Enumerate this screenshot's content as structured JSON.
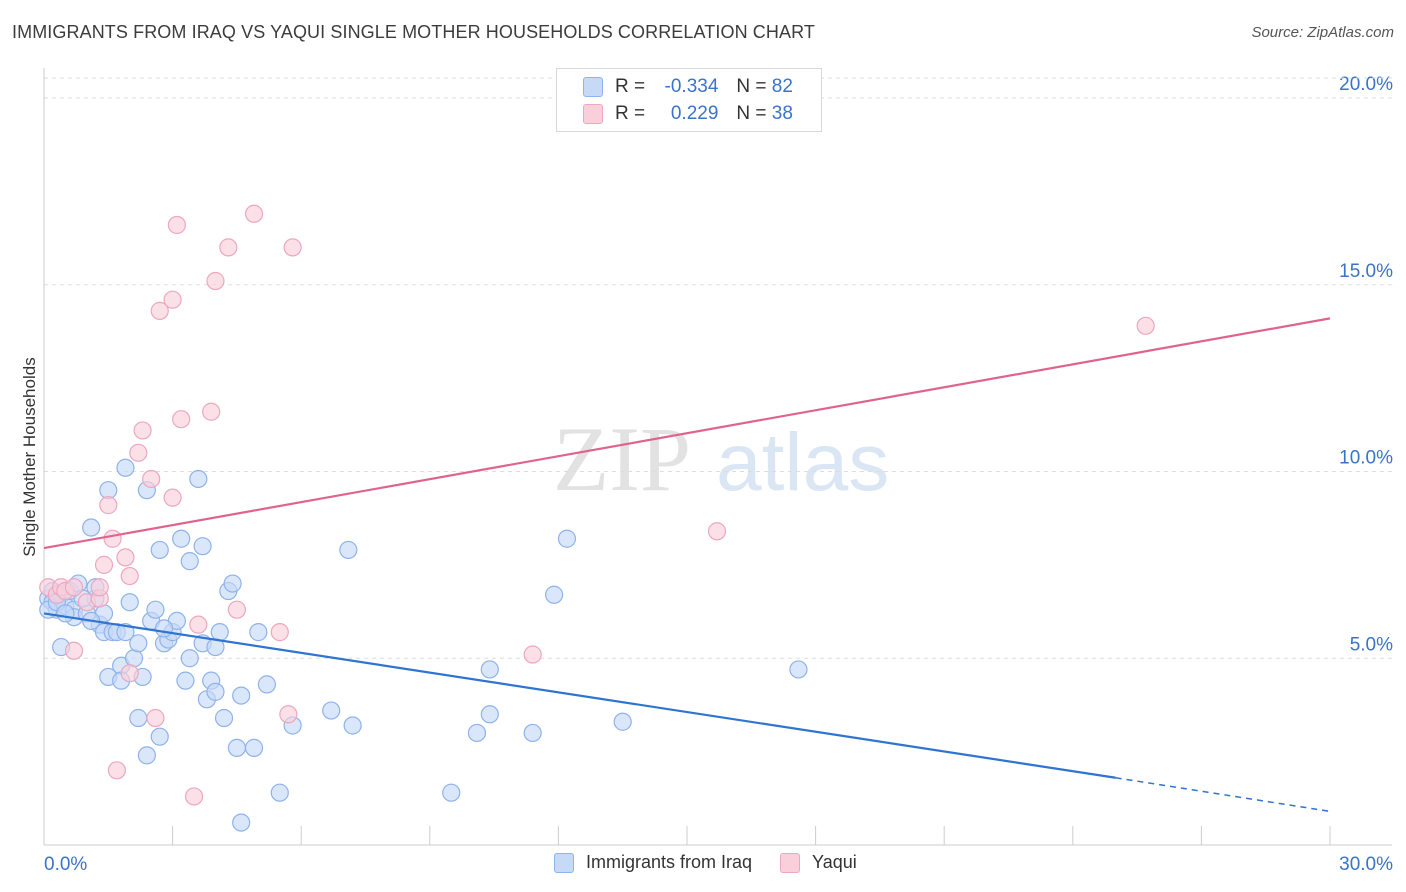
{
  "title": "IMMIGRANTS FROM IRAQ VS YAQUI SINGLE MOTHER HOUSEHOLDS CORRELATION CHART",
  "source": "Source: ZipAtlas.com",
  "watermark": {
    "zip": "ZIP",
    "atlas": "atlas"
  },
  "colors": {
    "blue_fill": "#c6d9f7",
    "blue_stroke": "#8fb3ea",
    "blue_line": "#2e74d0",
    "pink_fill": "#f9cfdc",
    "pink_stroke": "#eda7bf",
    "pink_line": "#e0638f",
    "tick_label": "#3a73c9",
    "grid": "#dddddd"
  },
  "legend": {
    "rows": [
      {
        "r_label": "R =",
        "r_value": "-0.334",
        "n_label": "N =",
        "n_value": "82"
      },
      {
        "r_label": "R =",
        "r_value": "0.229",
        "n_label": "N =",
        "n_value": "38"
      }
    ]
  },
  "chart_data": {
    "type": "scatter",
    "title": "IMMIGRANTS FROM IRAQ VS YAQUI SINGLE MOTHER HOUSEHOLDS CORRELATION CHART",
    "xlabel": "",
    "ylabel": "Single Mother Households",
    "xlim": [
      0,
      30
    ],
    "ylim": [
      0,
      21
    ],
    "x_tick_labels": [
      {
        "value": 0,
        "label": "0.0%"
      },
      {
        "value": 30,
        "label": "30.0%"
      }
    ],
    "y_tick_labels": [
      {
        "value": 5,
        "label": "5.0%"
      },
      {
        "value": 10,
        "label": "10.0%"
      },
      {
        "value": 15,
        "label": "15.0%"
      },
      {
        "value": 20,
        "label": "20.0%"
      }
    ],
    "series": [
      {
        "name": "Immigrants from Iraq",
        "color": "blue",
        "trend": {
          "x0": 0,
          "y0": 6.2,
          "x1": 25.0,
          "y1": 1.8,
          "dash_to_x": 30,
          "dash_to_y": 0.9
        },
        "points": [
          [
            0.1,
            6.6
          ],
          [
            0.2,
            6.8
          ],
          [
            0.2,
            6.5
          ],
          [
            0.3,
            6.3
          ],
          [
            0.4,
            6.7
          ],
          [
            0.4,
            5.3
          ],
          [
            0.5,
            6.4
          ],
          [
            0.6,
            6.8
          ],
          [
            0.7,
            6.3
          ],
          [
            0.7,
            6.1
          ],
          [
            0.8,
            7.0
          ],
          [
            1.0,
            6.2
          ],
          [
            1.1,
            8.5
          ],
          [
            1.2,
            6.6
          ],
          [
            1.2,
            6.9
          ],
          [
            1.3,
            5.9
          ],
          [
            1.4,
            5.7
          ],
          [
            1.4,
            6.2
          ],
          [
            1.5,
            4.5
          ],
          [
            1.5,
            9.5
          ],
          [
            1.6,
            5.7
          ],
          [
            1.7,
            5.7
          ],
          [
            1.8,
            4.8
          ],
          [
            1.8,
            4.4
          ],
          [
            1.9,
            5.7
          ],
          [
            1.9,
            10.1
          ],
          [
            2.0,
            6.5
          ],
          [
            2.1,
            5.0
          ],
          [
            2.2,
            5.4
          ],
          [
            2.2,
            3.4
          ],
          [
            2.3,
            4.5
          ],
          [
            2.4,
            9.5
          ],
          [
            2.4,
            2.4
          ],
          [
            2.5,
            6.0
          ],
          [
            2.6,
            6.3
          ],
          [
            2.7,
            7.9
          ],
          [
            2.7,
            2.9
          ],
          [
            2.8,
            5.4
          ],
          [
            2.9,
            5.5
          ],
          [
            3.0,
            5.7
          ],
          [
            3.1,
            6.0
          ],
          [
            3.2,
            8.2
          ],
          [
            3.3,
            4.4
          ],
          [
            3.4,
            5.0
          ],
          [
            3.4,
            7.6
          ],
          [
            3.6,
            9.8
          ],
          [
            3.7,
            8.0
          ],
          [
            3.7,
            5.4
          ],
          [
            3.8,
            3.9
          ],
          [
            3.9,
            4.4
          ],
          [
            4.0,
            4.1
          ],
          [
            4.0,
            5.3
          ],
          [
            4.1,
            5.7
          ],
          [
            4.2,
            3.4
          ],
          [
            4.3,
            6.8
          ],
          [
            4.4,
            7.0
          ],
          [
            4.5,
            2.6
          ],
          [
            4.6,
            4.0
          ],
          [
            4.6,
            0.6
          ],
          [
            4.9,
            2.6
          ],
          [
            5.0,
            5.7
          ],
          [
            5.2,
            4.3
          ],
          [
            5.5,
            1.4
          ],
          [
            5.8,
            3.2
          ],
          [
            6.7,
            3.6
          ],
          [
            7.1,
            7.9
          ],
          [
            7.2,
            3.2
          ],
          [
            9.5,
            1.4
          ],
          [
            10.1,
            3.0
          ],
          [
            10.4,
            4.7
          ],
          [
            10.4,
            3.5
          ],
          [
            11.4,
            3.0
          ],
          [
            11.9,
            6.7
          ],
          [
            12.2,
            8.2
          ],
          [
            13.5,
            3.3
          ],
          [
            17.6,
            4.7
          ],
          [
            0.1,
            6.3
          ],
          [
            0.3,
            6.5
          ],
          [
            0.5,
            6.2
          ],
          [
            0.9,
            6.6
          ],
          [
            1.1,
            6.0
          ],
          [
            2.8,
            5.8
          ]
        ]
      },
      {
        "name": "Yaqui",
        "color": "pink",
        "trend": {
          "x0": 0,
          "y0": 7.95,
          "x1": 30,
          "y1": 14.1
        },
        "points": [
          [
            0.1,
            6.9
          ],
          [
            0.3,
            6.7
          ],
          [
            0.4,
            6.9
          ],
          [
            0.5,
            6.8
          ],
          [
            0.7,
            6.9
          ],
          [
            0.7,
            5.2
          ],
          [
            1.0,
            6.5
          ],
          [
            1.3,
            6.6
          ],
          [
            1.3,
            6.9
          ],
          [
            1.4,
            7.5
          ],
          [
            1.5,
            9.1
          ],
          [
            1.6,
            8.2
          ],
          [
            1.7,
            2.0
          ],
          [
            1.9,
            7.7
          ],
          [
            2.0,
            4.6
          ],
          [
            2.0,
            7.2
          ],
          [
            2.2,
            10.5
          ],
          [
            2.3,
            11.1
          ],
          [
            2.5,
            9.8
          ],
          [
            2.6,
            3.4
          ],
          [
            2.7,
            14.3
          ],
          [
            3.0,
            14.6
          ],
          [
            3.0,
            9.3
          ],
          [
            3.1,
            16.6
          ],
          [
            3.2,
            11.4
          ],
          [
            3.5,
            1.3
          ],
          [
            3.6,
            5.9
          ],
          [
            3.9,
            11.6
          ],
          [
            4.0,
            15.1
          ],
          [
            4.3,
            16.0
          ],
          [
            4.5,
            6.3
          ],
          [
            4.9,
            16.9
          ],
          [
            5.5,
            5.7
          ],
          [
            5.7,
            3.5
          ],
          [
            5.8,
            16.0
          ],
          [
            11.4,
            5.1
          ],
          [
            15.7,
            8.4
          ],
          [
            25.7,
            13.9
          ]
        ]
      }
    ],
    "legend_position": "top-center"
  },
  "bottom_legend": [
    "Immigrants from Iraq",
    "Yaqui"
  ]
}
